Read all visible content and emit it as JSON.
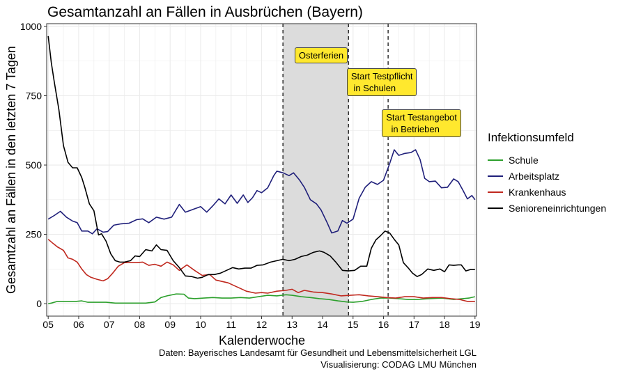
{
  "chart_data": {
    "type": "line",
    "title": "Gesamtanzahl an Fällen in Ausbrüchen (Bayern)",
    "xlabel": "Kalenderwoche",
    "ylabel": "Gesamtzahl an Fällen in den letzten 7 Tagen",
    "xlim": [
      4.95,
      19.05
    ],
    "ylim": [
      -45,
      1010
    ],
    "x_ticks": [
      5,
      6,
      7,
      8,
      9,
      10,
      11,
      12,
      13,
      14,
      15,
      16,
      17,
      18,
      19
    ],
    "x_tick_labels": [
      "05",
      "06",
      "07",
      "08",
      "09",
      "10",
      "11",
      "12",
      "13",
      "14",
      "15",
      "16",
      "17",
      "18",
      "19"
    ],
    "y_ticks": [
      0,
      250,
      500,
      750,
      1000
    ],
    "y_tick_labels": [
      "0",
      "250",
      "500",
      "750",
      "1000"
    ],
    "grid": true,
    "shaded_region": {
      "x_start": 12.7,
      "x_end": 14.85,
      "color": "#dcdcdc"
    },
    "vlines": [
      12.7,
      14.85,
      16.15
    ],
    "annotations": [
      {
        "x": 13.95,
        "y": 895,
        "text": "Osterferien"
      },
      {
        "x": 15.95,
        "y": 800,
        "text": "Start Testpflicht\n in Schulen"
      },
      {
        "x": 17.25,
        "y": 650,
        "text": "Start Testangebot\n  in Betrieben"
      }
    ],
    "legend": {
      "title": "Infektionsumfeld",
      "position": "right"
    },
    "series": [
      {
        "name": "Schule",
        "color": "#2ca02c",
        "points": [
          [
            5.0,
            0
          ],
          [
            5.1,
            2
          ],
          [
            5.3,
            8
          ],
          [
            5.6,
            8
          ],
          [
            5.9,
            8
          ],
          [
            6.1,
            10
          ],
          [
            6.3,
            5
          ],
          [
            6.6,
            5
          ],
          [
            6.9,
            5
          ],
          [
            7.2,
            2
          ],
          [
            7.6,
            2
          ],
          [
            7.9,
            2
          ],
          [
            8.2,
            2
          ],
          [
            8.5,
            6
          ],
          [
            8.7,
            22
          ],
          [
            8.9,
            28
          ],
          [
            9.2,
            35
          ],
          [
            9.45,
            34
          ],
          [
            9.6,
            20
          ],
          [
            9.8,
            18
          ],
          [
            10.1,
            20
          ],
          [
            10.4,
            22
          ],
          [
            10.7,
            20
          ],
          [
            11.0,
            20
          ],
          [
            11.3,
            22
          ],
          [
            11.6,
            20
          ],
          [
            11.9,
            25
          ],
          [
            12.2,
            30
          ],
          [
            12.5,
            28
          ],
          [
            12.8,
            32
          ],
          [
            13.0,
            30
          ],
          [
            13.3,
            25
          ],
          [
            13.6,
            22
          ],
          [
            13.9,
            18
          ],
          [
            14.2,
            15
          ],
          [
            14.5,
            10
          ],
          [
            14.8,
            6
          ],
          [
            15.0,
            5
          ],
          [
            15.3,
            8
          ],
          [
            15.6,
            15
          ],
          [
            15.9,
            20
          ],
          [
            16.2,
            20
          ],
          [
            16.5,
            18
          ],
          [
            16.8,
            15
          ],
          [
            17.1,
            15
          ],
          [
            17.5,
            18
          ],
          [
            17.9,
            20
          ],
          [
            18.3,
            15
          ],
          [
            18.6,
            18
          ],
          [
            18.8,
            20
          ],
          [
            19.0,
            25
          ]
        ]
      },
      {
        "name": "Arbeitsplatz",
        "color": "#1f1f7a",
        "points": [
          [
            5.0,
            305
          ],
          [
            5.2,
            318
          ],
          [
            5.4,
            333
          ],
          [
            5.6,
            312
          ],
          [
            5.8,
            298
          ],
          [
            5.95,
            292
          ],
          [
            6.1,
            262
          ],
          [
            6.3,
            262
          ],
          [
            6.45,
            252
          ],
          [
            6.6,
            270
          ],
          [
            6.8,
            258
          ],
          [
            6.95,
            260
          ],
          [
            7.15,
            283
          ],
          [
            7.4,
            288
          ],
          [
            7.65,
            290
          ],
          [
            7.9,
            303
          ],
          [
            8.1,
            306
          ],
          [
            8.3,
            292
          ],
          [
            8.55,
            312
          ],
          [
            8.8,
            305
          ],
          [
            9.05,
            312
          ],
          [
            9.3,
            358
          ],
          [
            9.5,
            330
          ],
          [
            9.75,
            340
          ],
          [
            10.0,
            350
          ],
          [
            10.2,
            330
          ],
          [
            10.4,
            353
          ],
          [
            10.6,
            378
          ],
          [
            10.8,
            360
          ],
          [
            11.0,
            392
          ],
          [
            11.2,
            362
          ],
          [
            11.4,
            392
          ],
          [
            11.55,
            365
          ],
          [
            11.7,
            382
          ],
          [
            11.85,
            408
          ],
          [
            12.0,
            400
          ],
          [
            12.2,
            418
          ],
          [
            12.4,
            462
          ],
          [
            12.5,
            478
          ],
          [
            12.7,
            472
          ],
          [
            12.9,
            462
          ],
          [
            13.05,
            472
          ],
          [
            13.25,
            445
          ],
          [
            13.4,
            420
          ],
          [
            13.6,
            375
          ],
          [
            13.8,
            360
          ],
          [
            13.95,
            338
          ],
          [
            14.15,
            292
          ],
          [
            14.3,
            255
          ],
          [
            14.5,
            262
          ],
          [
            14.65,
            300
          ],
          [
            14.8,
            290
          ],
          [
            15.0,
            305
          ],
          [
            15.2,
            380
          ],
          [
            15.4,
            420
          ],
          [
            15.6,
            440
          ],
          [
            15.8,
            430
          ],
          [
            16.0,
            445
          ],
          [
            16.2,
            505
          ],
          [
            16.35,
            555
          ],
          [
            16.5,
            535
          ],
          [
            16.7,
            542
          ],
          [
            16.9,
            545
          ],
          [
            17.05,
            555
          ],
          [
            17.2,
            520
          ],
          [
            17.35,
            452
          ],
          [
            17.5,
            440
          ],
          [
            17.7,
            442
          ],
          [
            17.9,
            418
          ],
          [
            18.1,
            420
          ],
          [
            18.3,
            450
          ],
          [
            18.45,
            440
          ],
          [
            18.6,
            410
          ],
          [
            18.75,
            378
          ],
          [
            18.9,
            390
          ],
          [
            19.0,
            375
          ]
        ]
      },
      {
        "name": "Krankenhaus",
        "color": "#c0281e",
        "points": [
          [
            5.0,
            232
          ],
          [
            5.15,
            218
          ],
          [
            5.3,
            205
          ],
          [
            5.5,
            192
          ],
          [
            5.65,
            165
          ],
          [
            5.8,
            160
          ],
          [
            5.95,
            150
          ],
          [
            6.1,
            125
          ],
          [
            6.25,
            105
          ],
          [
            6.4,
            95
          ],
          [
            6.6,
            88
          ],
          [
            6.8,
            82
          ],
          [
            6.95,
            90
          ],
          [
            7.1,
            108
          ],
          [
            7.3,
            135
          ],
          [
            7.5,
            148
          ],
          [
            7.7,
            148
          ],
          [
            7.9,
            148
          ],
          [
            8.1,
            150
          ],
          [
            8.3,
            138
          ],
          [
            8.5,
            142
          ],
          [
            8.7,
            135
          ],
          [
            8.9,
            150
          ],
          [
            9.1,
            140
          ],
          [
            9.3,
            120
          ],
          [
            9.55,
            140
          ],
          [
            9.8,
            120
          ],
          [
            10.05,
            102
          ],
          [
            10.3,
            105
          ],
          [
            10.5,
            85
          ],
          [
            10.7,
            80
          ],
          [
            10.9,
            75
          ],
          [
            11.1,
            65
          ],
          [
            11.3,
            55
          ],
          [
            11.5,
            45
          ],
          [
            11.8,
            38
          ],
          [
            12.0,
            40
          ],
          [
            12.2,
            38
          ],
          [
            12.5,
            45
          ],
          [
            12.8,
            48
          ],
          [
            13.0,
            52
          ],
          [
            13.2,
            40
          ],
          [
            13.4,
            48
          ],
          [
            13.7,
            42
          ],
          [
            14.0,
            40
          ],
          [
            14.3,
            35
          ],
          [
            14.6,
            28
          ],
          [
            14.9,
            30
          ],
          [
            15.2,
            32
          ],
          [
            15.5,
            28
          ],
          [
            15.8,
            25
          ],
          [
            16.1,
            22
          ],
          [
            16.4,
            20
          ],
          [
            16.7,
            25
          ],
          [
            17.0,
            25
          ],
          [
            17.3,
            20
          ],
          [
            17.6,
            22
          ],
          [
            17.9,
            22
          ],
          [
            18.2,
            18
          ],
          [
            18.5,
            15
          ],
          [
            18.75,
            8
          ],
          [
            19.0,
            8
          ]
        ]
      },
      {
        "name": "Senioreneinrichtungen",
        "color": "#000000",
        "points": [
          [
            5.0,
            965
          ],
          [
            5.1,
            870
          ],
          [
            5.2,
            800
          ],
          [
            5.35,
            700
          ],
          [
            5.5,
            570
          ],
          [
            5.65,
            510
          ],
          [
            5.8,
            490
          ],
          [
            5.95,
            490
          ],
          [
            6.1,
            455
          ],
          [
            6.2,
            420
          ],
          [
            6.35,
            360
          ],
          [
            6.5,
            335
          ],
          [
            6.65,
            248
          ],
          [
            6.75,
            252
          ],
          [
            6.9,
            225
          ],
          [
            7.05,
            180
          ],
          [
            7.2,
            155
          ],
          [
            7.35,
            150
          ],
          [
            7.5,
            150
          ],
          [
            7.7,
            155
          ],
          [
            7.85,
            172
          ],
          [
            8.0,
            170
          ],
          [
            8.2,
            195
          ],
          [
            8.4,
            190
          ],
          [
            8.55,
            212
          ],
          [
            8.7,
            195
          ],
          [
            8.9,
            192
          ],
          [
            9.1,
            155
          ],
          [
            9.3,
            130
          ],
          [
            9.5,
            100
          ],
          [
            9.7,
            98
          ],
          [
            9.9,
            92
          ],
          [
            10.05,
            95
          ],
          [
            10.25,
            105
          ],
          [
            10.45,
            105
          ],
          [
            10.65,
            110
          ],
          [
            10.85,
            120
          ],
          [
            11.05,
            130
          ],
          [
            11.25,
            125
          ],
          [
            11.45,
            128
          ],
          [
            11.65,
            128
          ],
          [
            11.85,
            138
          ],
          [
            12.05,
            140
          ],
          [
            12.3,
            150
          ],
          [
            12.5,
            155
          ],
          [
            12.7,
            160
          ],
          [
            12.9,
            155
          ],
          [
            13.1,
            160
          ],
          [
            13.3,
            170
          ],
          [
            13.5,
            175
          ],
          [
            13.7,
            185
          ],
          [
            13.9,
            190
          ],
          [
            14.05,
            185
          ],
          [
            14.25,
            172
          ],
          [
            14.45,
            148
          ],
          [
            14.65,
            120
          ],
          [
            14.85,
            118
          ],
          [
            15.05,
            120
          ],
          [
            15.25,
            135
          ],
          [
            15.45,
            135
          ],
          [
            15.6,
            200
          ],
          [
            15.75,
            230
          ],
          [
            15.9,
            245
          ],
          [
            16.05,
            262
          ],
          [
            16.2,
            255
          ],
          [
            16.35,
            232
          ],
          [
            16.5,
            212
          ],
          [
            16.65,
            148
          ],
          [
            16.8,
            130
          ],
          [
            16.95,
            110
          ],
          [
            17.1,
            98
          ],
          [
            17.25,
            105
          ],
          [
            17.45,
            125
          ],
          [
            17.65,
            120
          ],
          [
            17.85,
            125
          ],
          [
            18.0,
            115
          ],
          [
            18.15,
            140
          ],
          [
            18.3,
            138
          ],
          [
            18.45,
            140
          ],
          [
            18.55,
            140
          ],
          [
            18.7,
            118
          ],
          [
            18.85,
            123
          ],
          [
            19.0,
            123
          ]
        ]
      }
    ]
  },
  "caption": {
    "line1": "Daten: Bayerisches Landesamt für Gesundheit und Lebensmittelsicherheit LGL",
    "line2": "Visualisierung: CODAG LMU München"
  }
}
